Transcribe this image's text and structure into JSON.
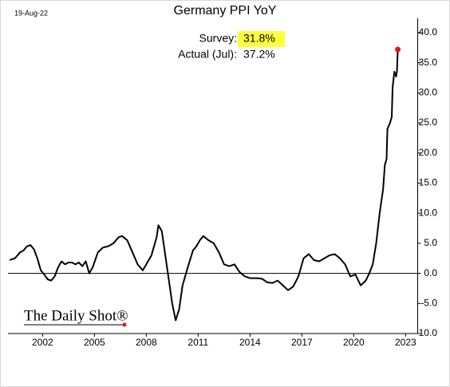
{
  "chart_data": {
    "type": "line",
    "date_label": "19-Aug-22",
    "title": "Germany PPI YoY",
    "annotations": {
      "survey_label": "Survey:",
      "survey_value": "31.8%",
      "actual_label": "Actual (Jul):",
      "actual_value": "37.2%"
    },
    "source": "The Daily Shot®",
    "color": "#000000",
    "last_point_color": "#e8141b",
    "x": [
      2000.1,
      2000.4,
      2000.7,
      2000.9,
      2001.1,
      2001.3,
      2001.5,
      2001.7,
      2001.9,
      2002.1,
      2002.3,
      2002.5,
      2002.7,
      2002.9,
      2003.1,
      2003.3,
      2003.5,
      2003.7,
      2003.9,
      2004.1,
      2004.3,
      2004.5,
      2004.7,
      2004.9,
      2005.2,
      2005.5,
      2005.8,
      2006.1,
      2006.4,
      2006.6,
      2006.9,
      2007.2,
      2007.5,
      2007.8,
      2008.0,
      2008.3,
      2008.6,
      2008.7,
      2008.9,
      2009.1,
      2009.3,
      2009.5,
      2009.7,
      2009.9,
      2010.1,
      2010.4,
      2010.7,
      2010.9,
      2011.1,
      2011.3,
      2011.6,
      2011.9,
      2012.2,
      2012.5,
      2012.8,
      2013.1,
      2013.4,
      2013.7,
      2014.0,
      2014.4,
      2014.7,
      2015.0,
      2015.3,
      2015.6,
      2015.9,
      2016.2,
      2016.5,
      2016.8,
      2017.1,
      2017.4,
      2017.7,
      2018.0,
      2018.3,
      2018.6,
      2018.9,
      2019.2,
      2019.5,
      2019.8,
      2020.1,
      2020.4,
      2020.7,
      2020.9,
      2021.1,
      2021.3,
      2021.5,
      2021.7,
      2021.8,
      2021.9,
      2021.95,
      2022.1,
      2022.2,
      2022.25,
      2022.35,
      2022.45,
      2022.5,
      2022.55
    ],
    "values": [
      2.2,
      2.5,
      3.5,
      3.8,
      4.5,
      4.7,
      4.0,
      2.5,
      0.5,
      -0.2,
      -1.0,
      -1.2,
      -0.5,
      1.0,
      2.0,
      1.5,
      1.8,
      1.8,
      1.5,
      1.8,
      1.2,
      2.0,
      0.0,
      1.0,
      3.5,
      4.3,
      4.5,
      5.0,
      6.0,
      6.2,
      5.5,
      3.5,
      1.5,
      0.5,
      1.5,
      3.0,
      6.0,
      8.0,
      7.0,
      3.0,
      -1.0,
      -5.0,
      -7.8,
      -6.0,
      -2.0,
      1.0,
      3.8,
      4.5,
      5.5,
      6.2,
      5.5,
      5.0,
      3.5,
      1.5,
      1.2,
      1.5,
      0.2,
      -0.5,
      -0.8,
      -0.8,
      -0.9,
      -1.5,
      -1.6,
      -1.2,
      -2.0,
      -2.8,
      -2.2,
      -0.5,
      2.5,
      3.2,
      2.2,
      2.0,
      2.5,
      3.0,
      3.2,
      2.5,
      1.5,
      -0.5,
      -0.2,
      -2.0,
      -1.2,
      0.0,
      1.5,
      5.0,
      10.0,
      14.0,
      18.0,
      19.0,
      24.0,
      25.0,
      26.0,
      30.9,
      33.5,
      32.7,
      33.6,
      37.2
    ],
    "xlim": [
      2000.0,
      2023.7
    ],
    "xticks": [
      2002,
      2005,
      2008,
      2011,
      2014,
      2017,
      2020,
      2023
    ],
    "ylim": [
      -10,
      42.4
    ],
    "yticks": [
      {
        "value": 40,
        "label": "40.0"
      },
      {
        "value": 35,
        "label": "35.0"
      },
      {
        "value": 30,
        "label": "30.0"
      },
      {
        "value": 25,
        "label": "25.0"
      },
      {
        "value": 20,
        "label": "20.0"
      },
      {
        "value": 15,
        "label": "15.0"
      },
      {
        "value": 10,
        "label": "10.0"
      },
      {
        "value": 5,
        "label": "5.0"
      },
      {
        "value": 0,
        "label": "0.0"
      },
      {
        "value": -5,
        "label": "-5.0"
      },
      {
        "value": -10,
        "label": "-10.0"
      }
    ],
    "grid": false
  }
}
